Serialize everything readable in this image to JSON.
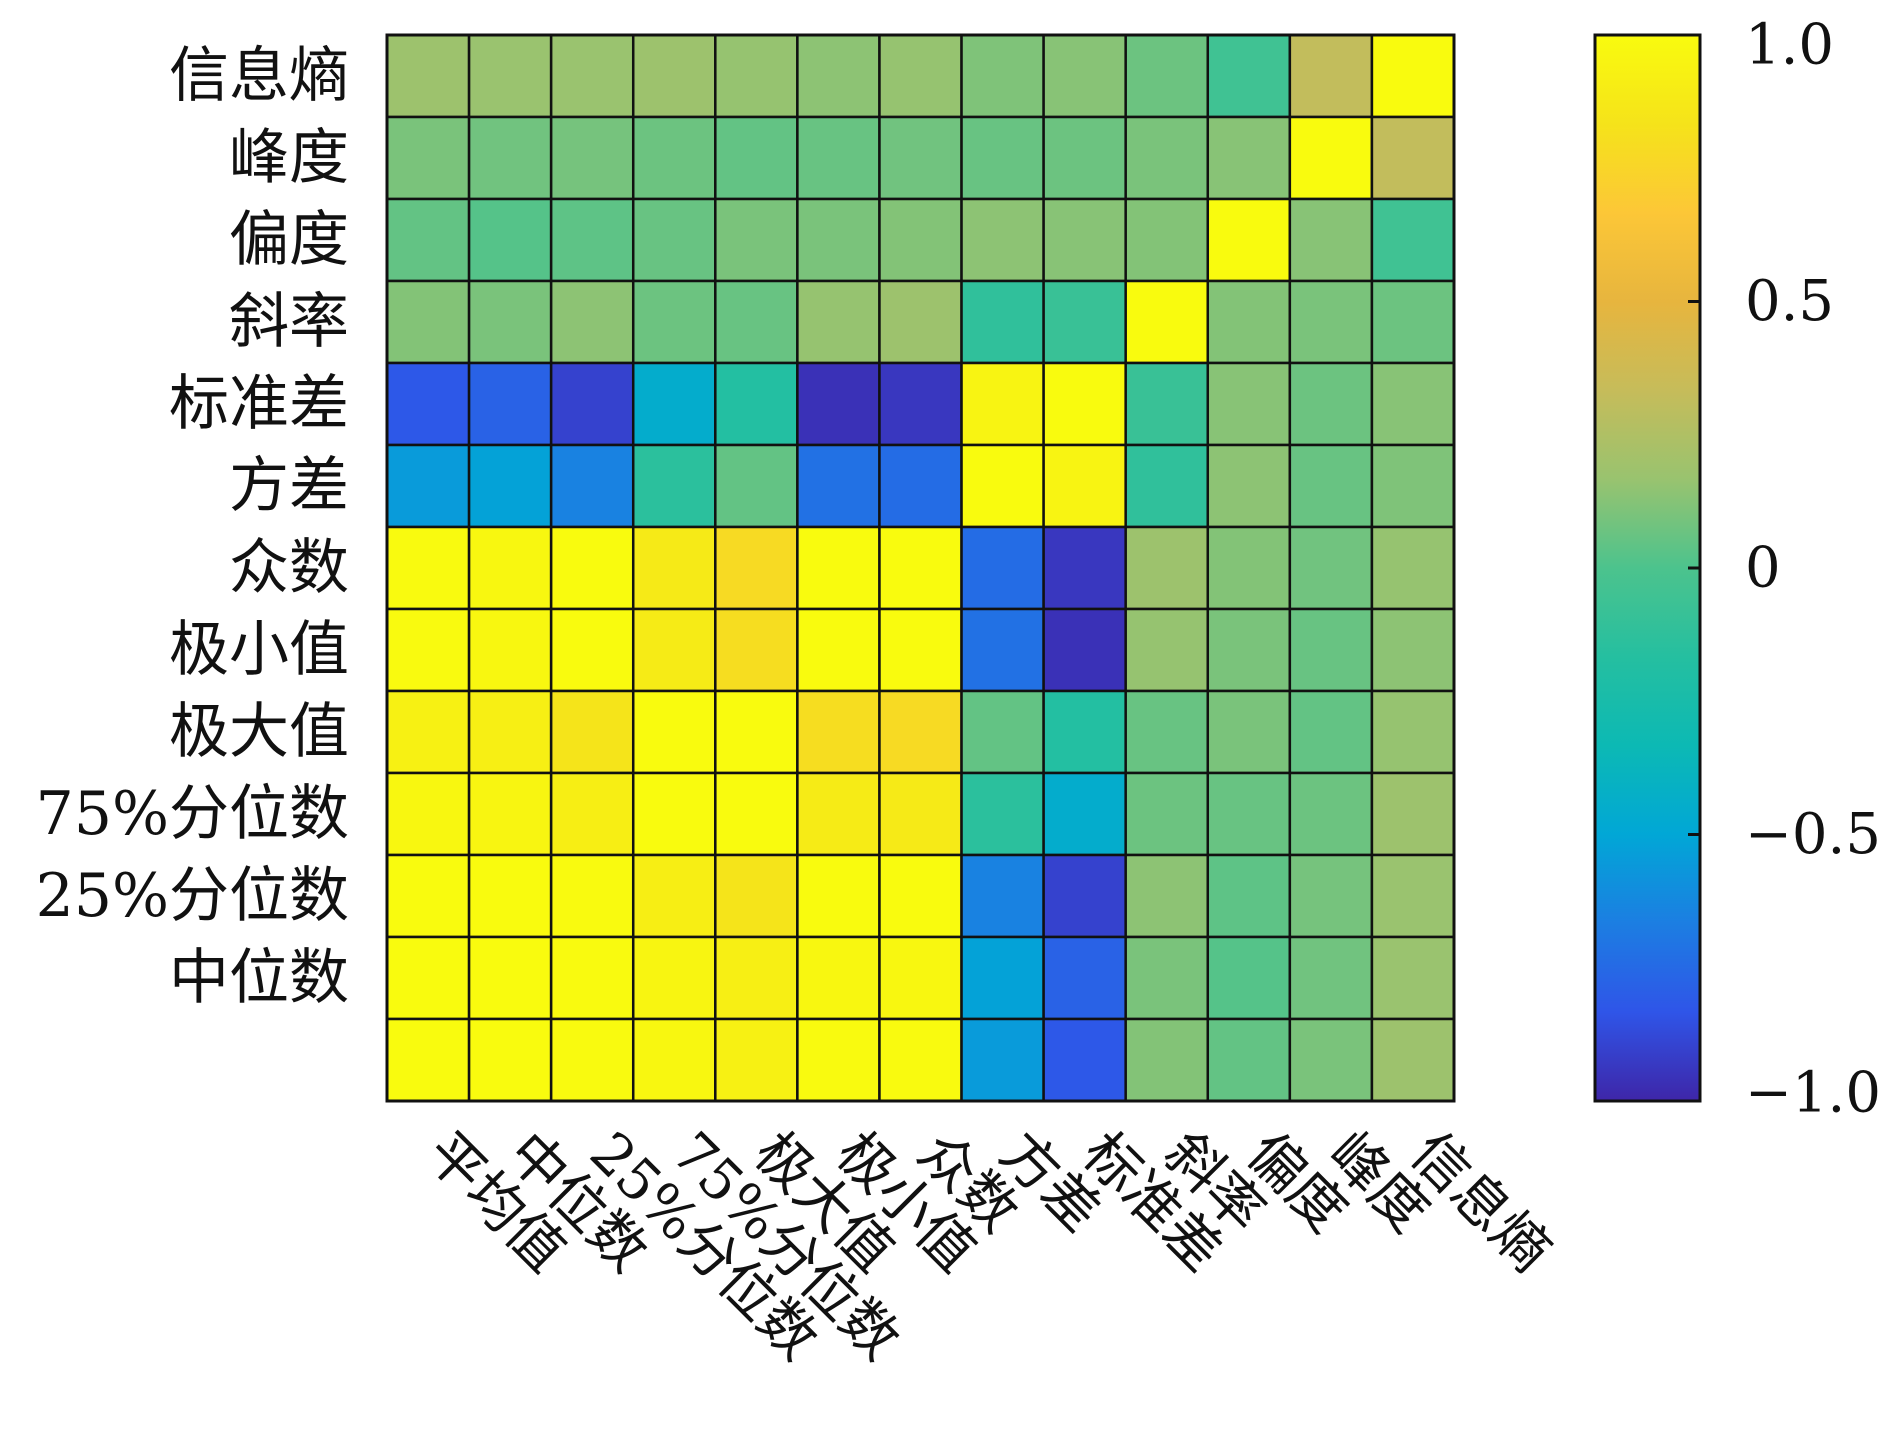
{
  "chart_data": {
    "type": "heatmap",
    "x_labels": [
      "平均值",
      "中位数",
      "25%分位数",
      "75%分位数",
      "极大值",
      "极小值",
      "众数",
      "方差",
      "标准差",
      "斜率",
      "偏度",
      "峰度",
      "信息熵"
    ],
    "y_labels": [
      "信息熵",
      "峰度",
      "偏度",
      "斜率",
      "标准差",
      "方差",
      "众数",
      "极小值",
      "极大值",
      "75%分位数",
      "25%分位数",
      "中位数",
      ""
    ],
    "values": [
      [
        0.18,
        0.17,
        0.17,
        0.18,
        0.16,
        0.14,
        0.16,
        0.11,
        0.13,
        0.07,
        -0.05,
        0.32,
        1.0
      ],
      [
        0.1,
        0.08,
        0.09,
        0.07,
        0.05,
        0.06,
        0.08,
        0.06,
        0.07,
        0.1,
        0.13,
        1.0,
        0.32
      ],
      [
        0.05,
        0.02,
        0.04,
        0.06,
        0.1,
        0.1,
        0.12,
        0.14,
        0.13,
        0.12,
        1.0,
        0.13,
        -0.05
      ],
      [
        0.12,
        0.1,
        0.14,
        0.07,
        0.06,
        0.16,
        0.18,
        -0.12,
        -0.08,
        1.0,
        0.12,
        0.1,
        0.07
      ],
      [
        -0.82,
        -0.78,
        -0.9,
        -0.45,
        -0.18,
        -0.96,
        -0.94,
        0.95,
        1.0,
        -0.08,
        0.13,
        0.07,
        0.13
      ],
      [
        -0.55,
        -0.52,
        -0.65,
        -0.14,
        0.05,
        -0.72,
        -0.74,
        1.0,
        0.95,
        -0.12,
        0.14,
        0.06,
        0.11
      ],
      [
        0.99,
        0.97,
        1.0,
        0.88,
        0.78,
        1.0,
        1.0,
        -0.74,
        -0.94,
        0.18,
        0.12,
        0.08,
        0.16
      ],
      [
        0.99,
        0.97,
        1.0,
        0.89,
        0.8,
        1.0,
        1.0,
        -0.72,
        -0.96,
        0.16,
        0.1,
        0.06,
        0.14
      ],
      [
        0.93,
        0.92,
        0.84,
        1.0,
        1.0,
        0.8,
        0.78,
        0.05,
        -0.18,
        0.06,
        0.1,
        0.05,
        0.16
      ],
      [
        0.97,
        0.96,
        0.91,
        1.0,
        1.0,
        0.89,
        0.88,
        -0.14,
        -0.45,
        0.07,
        0.06,
        0.07,
        0.18
      ],
      [
        1.0,
        1.0,
        0.99,
        0.91,
        0.84,
        1.0,
        1.0,
        -0.65,
        -0.9,
        0.14,
        0.04,
        0.09,
        0.17
      ],
      [
        1.0,
        1.0,
        0.99,
        0.96,
        0.92,
        0.97,
        0.97,
        -0.52,
        -0.78,
        0.1,
        0.02,
        0.08,
        0.17
      ],
      [
        1.0,
        1.0,
        0.99,
        0.97,
        0.93,
        0.99,
        0.99,
        -0.55,
        -0.82,
        0.12,
        0.05,
        0.1,
        0.18
      ]
    ],
    "vmin": -1.0,
    "vmax": 1.0,
    "colorbar_ticks": [
      {
        "value": 1.0,
        "label": "1.0"
      },
      {
        "value": 0.5,
        "label": "0.5"
      },
      {
        "value": 0,
        "label": "0"
      },
      {
        "value": -0.5,
        "label": "−0.5"
      },
      {
        "value": -1.0,
        "label": "−1.0"
      }
    ],
    "colormap": [
      "#3e26a8",
      "#2f55e8",
      "#1c7ee2",
      "#01a7d6",
      "#0cb9b4",
      "#25bfa0",
      "#4cc38d",
      "#99c36f",
      "#c6bc5a",
      "#e7b53e",
      "#fcc737",
      "#f5e31a",
      "#f9fb0e"
    ],
    "cell_border_color": "#111111",
    "grid": true
  }
}
